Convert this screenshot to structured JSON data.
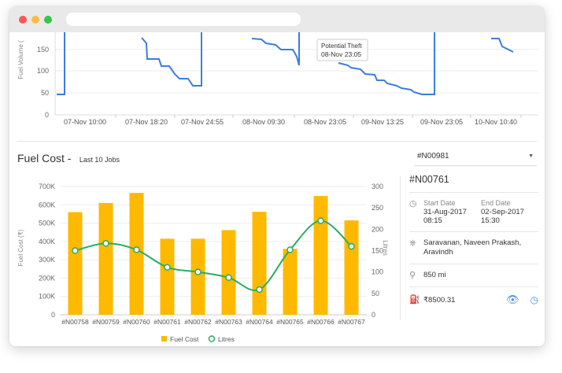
{
  "top_chart": {
    "y_label": "Fuel Volume (",
    "y_ticks": [
      "150",
      "100",
      "50",
      "0"
    ],
    "x_ticks": [
      "07-Nov 10:00",
      "07-Nov 18:20",
      "07-Nov 24:55",
      "08-Nov 09:30",
      "08-Nov 23:05",
      "09-Nov 13:25",
      "09-Nov 23:05",
      "10-Nov 10:40"
    ],
    "tooltip": {
      "title": "Potential Theft",
      "time": "08-Nov 23:05"
    },
    "line_color": "#3b7ddd"
  },
  "fuel_cost": {
    "title": "Fuel Cost -",
    "subtitle": "Last 10 Jobs",
    "selected_job": "#N00981",
    "chevron_icon": "chevron-down-icon"
  },
  "chart_data": {
    "type": "bar",
    "categories": [
      "#N00758",
      "#N00759",
      "#N00760",
      "#N00761",
      "#N00762",
      "#N00763",
      "#N00764",
      "#N00765",
      "#N00766",
      "#N00767"
    ],
    "series": [
      {
        "name": "Fuel Cost",
        "type": "bar",
        "axis": "left",
        "color": "#ffb900",
        "values": [
          560000,
          610000,
          665000,
          415000,
          415000,
          462000,
          562000,
          360000,
          648000,
          515000
        ]
      },
      {
        "name": "Litres",
        "type": "line",
        "axis": "right",
        "color": "#27ae60",
        "values": [
          150,
          167,
          152,
          111,
          100,
          87,
          59,
          152,
          220,
          160
        ]
      }
    ],
    "ylabel": "Fuel Cost (₹)",
    "y2label": "Litres",
    "ylim": [
      0,
      700000
    ],
    "y2lim": [
      0,
      300
    ],
    "y_ticks": [
      "0",
      "100K",
      "200K",
      "300K",
      "400K",
      "500K",
      "600K",
      "700K"
    ],
    "y2_ticks": [
      "0",
      "50",
      "100",
      "150",
      "200",
      "250",
      "300"
    ],
    "legend": [
      "Fuel Cost",
      "Litres"
    ],
    "legend_position": "bottom",
    "grid": true
  },
  "details": {
    "job_id": "#N00761",
    "start_label": "Start Date",
    "start_date": "31-Aug-2017",
    "start_time": "08:15",
    "end_label": "End Date",
    "end_date": "02-Sep-2017",
    "end_time": "15:30",
    "drivers": "Saravanan, Naveen Prakash, Aravindh",
    "distance": "850 mi",
    "cost": "₹8500.31"
  }
}
